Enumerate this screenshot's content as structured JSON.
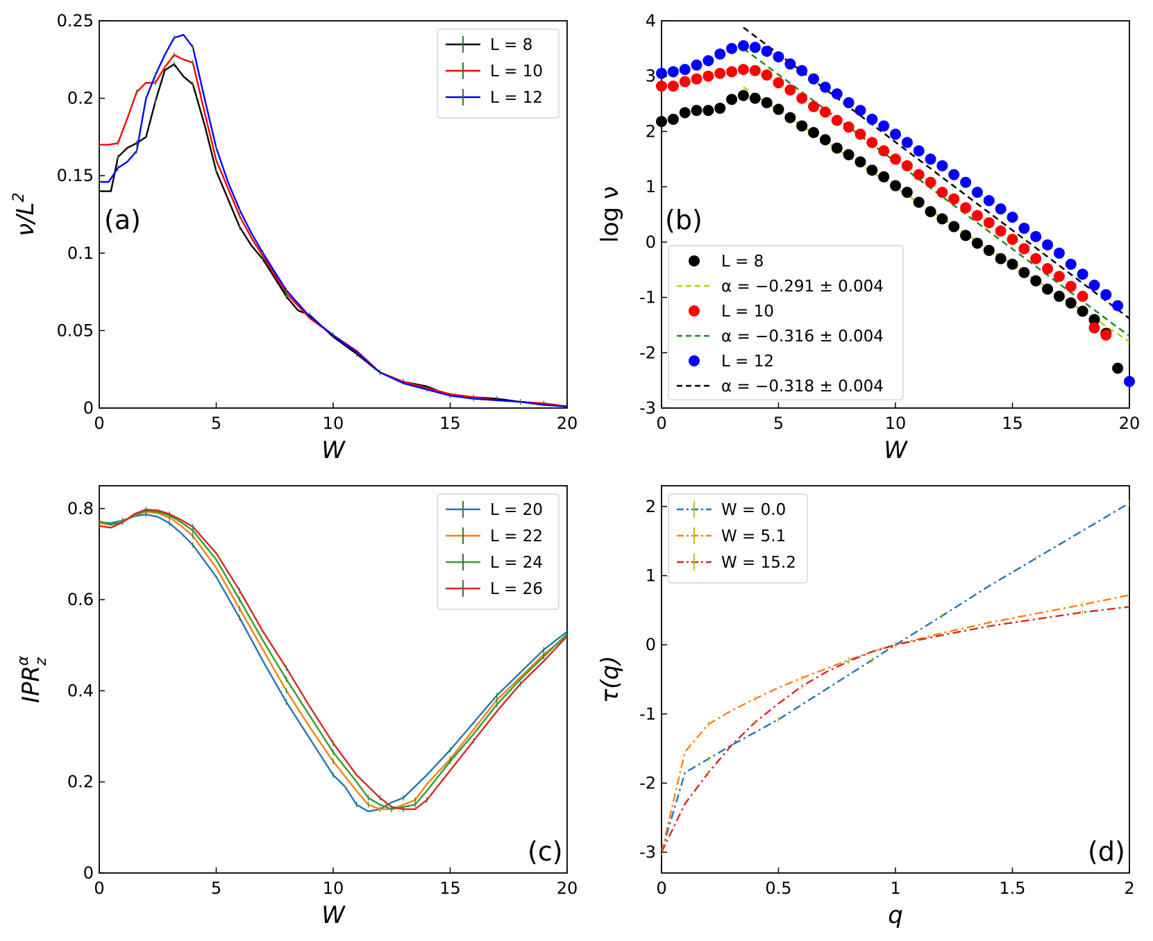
{
  "chart_data": [
    {
      "type": "line",
      "panel_label": "(a)",
      "xlabel": "W",
      "ylabel": "ν/L²",
      "xlim": [
        0,
        20
      ],
      "ylim": [
        0,
        0.25
      ],
      "xticks": [
        "0",
        "5",
        "10",
        "15",
        "20"
      ],
      "yticks": [
        "0",
        "0.05",
        "0.1",
        "0.15",
        "0.2",
        "0.25"
      ],
      "legend_loc": "upper right",
      "series": [
        {
          "name": "L = 8",
          "color": "#000000",
          "x": [
            0,
            0.5,
            0.8,
            1.2,
            1.6,
            2.0,
            2.4,
            2.8,
            3.2,
            3.6,
            4.0,
            4.5,
            5.0,
            5.5,
            6.0,
            6.5,
            7.0,
            7.5,
            8.0,
            8.5,
            9.0,
            10.0,
            11.0,
            12.0,
            13.0,
            14.0,
            15.0,
            16.0,
            17.0,
            18.0,
            19.0,
            20.0
          ],
          "y": [
            0.14,
            0.14,
            0.162,
            0.168,
            0.171,
            0.175,
            0.198,
            0.218,
            0.222,
            0.214,
            0.209,
            0.183,
            0.153,
            0.135,
            0.117,
            0.105,
            0.096,
            0.084,
            0.072,
            0.063,
            0.06,
            0.046,
            0.035,
            0.023,
            0.017,
            0.014,
            0.008,
            0.007,
            0.006,
            0.004,
            0.003,
            0.001
          ]
        },
        {
          "name": "L = 10",
          "color": "#ff0000",
          "x": [
            0,
            0.4,
            0.8,
            1.2,
            1.6,
            2.0,
            2.4,
            2.8,
            3.2,
            3.6,
            4.0,
            4.5,
            5.0,
            5.5,
            6.0,
            6.5,
            7.0,
            7.5,
            8.0,
            9.0,
            10.0,
            11.0,
            12.0,
            13.0,
            14.0,
            15.0,
            16.0,
            17.0,
            18.0,
            19.0,
            20.0
          ],
          "y": [
            0.17,
            0.17,
            0.171,
            0.187,
            0.204,
            0.21,
            0.21,
            0.22,
            0.228,
            0.225,
            0.223,
            0.191,
            0.16,
            0.142,
            0.124,
            0.11,
            0.098,
            0.086,
            0.074,
            0.058,
            0.047,
            0.037,
            0.023,
            0.017,
            0.013,
            0.009,
            0.007,
            0.005,
            0.004,
            0.003,
            0.001
          ]
        },
        {
          "name": "L = 12",
          "color": "#0000ff",
          "x": [
            0,
            0.4,
            0.8,
            1.2,
            1.6,
            2.0,
            2.4,
            2.8,
            3.2,
            3.6,
            4.0,
            4.5,
            5.0,
            5.5,
            6.0,
            6.5,
            7.0,
            7.5,
            8.0,
            9.0,
            10.0,
            11.0,
            12.0,
            13.0,
            14.0,
            15.0,
            16.0,
            17.0,
            18.0,
            19.0,
            20.0
          ],
          "y": [
            0.146,
            0.146,
            0.155,
            0.159,
            0.166,
            0.2,
            0.215,
            0.228,
            0.239,
            0.241,
            0.233,
            0.2,
            0.168,
            0.146,
            0.128,
            0.113,
            0.1,
            0.088,
            0.076,
            0.059,
            0.047,
            0.036,
            0.023,
            0.016,
            0.012,
            0.008,
            0.006,
            0.005,
            0.004,
            0.002,
            0.001
          ]
        }
      ]
    },
    {
      "type": "scatter",
      "panel_label": "(b)",
      "xlabel": "W",
      "ylabel": "log ν",
      "xlim": [
        0,
        20
      ],
      "ylim": [
        -3,
        4
      ],
      "xticks": [
        "0",
        "5",
        "10",
        "15",
        "20"
      ],
      "yticks": [
        "-3",
        "-2",
        "-1",
        "0",
        "1",
        "2",
        "3",
        "4"
      ],
      "legend_loc": "lower left",
      "series": [
        {
          "name": "L = 8",
          "color": "#000000",
          "x": [
            0,
            0.5,
            1.0,
            1.5,
            2.0,
            2.5,
            3.0,
            3.5,
            4.0,
            4.5,
            5.0,
            5.5,
            6.0,
            6.5,
            7.0,
            7.5,
            8.0,
            8.5,
            9.0,
            9.5,
            10.0,
            10.5,
            11.0,
            11.5,
            12.0,
            12.5,
            13.0,
            13.5,
            14.0,
            14.5,
            15.0,
            15.5,
            16.0,
            16.5,
            17.0,
            17.5,
            18.0,
            18.5,
            19.0,
            19.5
          ],
          "y": [
            2.18,
            2.22,
            2.34,
            2.38,
            2.38,
            2.42,
            2.58,
            2.65,
            2.6,
            2.52,
            2.4,
            2.25,
            2.1,
            1.98,
            1.85,
            1.7,
            1.58,
            1.45,
            1.3,
            1.18,
            1.02,
            0.9,
            0.72,
            0.55,
            0.42,
            0.28,
            0.12,
            -0.02,
            -0.15,
            -0.3,
            -0.4,
            -0.55,
            -0.7,
            -0.85,
            -0.98,
            -1.1,
            -1.25,
            -1.4,
            -1.65,
            -2.28
          ]
        },
        {
          "name": "L = 10",
          "color": "#ff0000",
          "x": [
            0,
            0.5,
            1.0,
            1.5,
            2.0,
            2.5,
            3.0,
            3.5,
            4.0,
            4.5,
            5.0,
            5.5,
            6.0,
            6.5,
            7.0,
            7.5,
            8.0,
            8.5,
            9.0,
            9.5,
            10.0,
            10.5,
            11.0,
            11.5,
            12.0,
            12.5,
            13.0,
            13.5,
            14.0,
            14.5,
            15.0,
            15.5,
            16.0,
            16.5,
            17.0,
            17.5,
            18.0,
            18.5,
            19.0
          ],
          "y": [
            2.82,
            2.82,
            2.9,
            2.95,
            3.0,
            3.05,
            3.08,
            3.12,
            3.1,
            3.02,
            2.88,
            2.75,
            2.6,
            2.45,
            2.35,
            2.2,
            2.08,
            1.95,
            1.8,
            1.65,
            1.5,
            1.38,
            1.22,
            1.08,
            0.9,
            0.78,
            0.62,
            0.48,
            0.35,
            0.2,
            0.05,
            -0.12,
            -0.3,
            -0.48,
            -0.62,
            -0.8,
            -0.98,
            -1.55,
            -1.68
          ]
        },
        {
          "name": "L = 12",
          "color": "#0000ff",
          "x": [
            0,
            0.5,
            1.0,
            1.5,
            2.0,
            2.5,
            3.0,
            3.5,
            4.0,
            4.5,
            5.0,
            5.5,
            6.0,
            6.5,
            7.0,
            7.5,
            8.0,
            8.5,
            9.0,
            9.5,
            10.0,
            10.5,
            11.0,
            11.5,
            12.0,
            12.5,
            13.0,
            13.5,
            14.0,
            14.5,
            15.0,
            15.5,
            16.0,
            16.5,
            17.0,
            17.5,
            18.0,
            18.5,
            19.0,
            19.5,
            20.0
          ],
          "y": [
            3.05,
            3.08,
            3.12,
            3.2,
            3.28,
            3.4,
            3.5,
            3.55,
            3.52,
            3.45,
            3.35,
            3.22,
            3.1,
            2.95,
            2.8,
            2.68,
            2.52,
            2.38,
            2.22,
            2.1,
            1.95,
            1.8,
            1.65,
            1.5,
            1.38,
            1.22,
            1.08,
            0.9,
            0.75,
            0.6,
            0.45,
            0.25,
            0.1,
            -0.05,
            -0.2,
            -0.4,
            -0.58,
            -0.78,
            -0.95,
            -1.15,
            -2.52
          ]
        }
      ],
      "fits": [
        {
          "name": "α = −0.291 ± 0.004",
          "color": "#c8c800",
          "x": [
            3.5,
            20
          ],
          "y": [
            2.8,
            -1.8
          ]
        },
        {
          "name": "α = −0.316 ± 0.004",
          "color": "#1a8a1a",
          "x": [
            3.5,
            20
          ],
          "y": [
            3.5,
            -1.7
          ]
        },
        {
          "name": "α = −0.318 ± 0.004",
          "color": "#000000",
          "x": [
            3.5,
            20
          ],
          "y": [
            3.88,
            -1.38
          ]
        }
      ]
    },
    {
      "type": "line",
      "panel_label": "(c)",
      "xlabel": "W",
      "ylabel": "IPR_z^α",
      "xlim": [
        0,
        20
      ],
      "ylim": [
        0,
        0.85
      ],
      "xticks": [
        "0",
        "5",
        "10",
        "15",
        "20"
      ],
      "yticks": [
        "0",
        "0.2",
        "0.4",
        "0.6",
        "0.8"
      ],
      "legend_loc": "upper right",
      "series": [
        {
          "name": "L = 20",
          "color": "#1f77b4",
          "x": [
            0,
            0.5,
            1,
            1.5,
            2,
            2.5,
            3,
            3.5,
            4,
            5,
            6,
            7,
            8,
            9,
            10,
            10.5,
            11,
            11.5,
            12,
            12.5,
            13,
            14,
            15,
            16,
            17,
            18,
            19,
            20
          ],
          "y": [
            0.77,
            0.768,
            0.774,
            0.783,
            0.787,
            0.782,
            0.768,
            0.746,
            0.72,
            0.65,
            0.56,
            0.465,
            0.375,
            0.295,
            0.215,
            0.19,
            0.15,
            0.135,
            0.14,
            0.155,
            0.165,
            0.215,
            0.27,
            0.33,
            0.39,
            0.44,
            0.49,
            0.53
          ]
        },
        {
          "name": "L = 22",
          "color": "#ff7f0e",
          "x": [
            0,
            0.5,
            1,
            1.5,
            2,
            2.5,
            3,
            3.5,
            4,
            5,
            6,
            7,
            8,
            9,
            10,
            11,
            11.5,
            12,
            12.5,
            13,
            13.5,
            14,
            15,
            16,
            17,
            18,
            19,
            20
          ],
          "y": [
            0.768,
            0.764,
            0.772,
            0.785,
            0.793,
            0.79,
            0.78,
            0.762,
            0.74,
            0.67,
            0.58,
            0.49,
            0.4,
            0.32,
            0.245,
            0.18,
            0.15,
            0.14,
            0.14,
            0.15,
            0.16,
            0.195,
            0.25,
            0.315,
            0.38,
            0.43,
            0.48,
            0.52
          ]
        },
        {
          "name": "L = 24",
          "color": "#2ca02c",
          "x": [
            0,
            0.5,
            1,
            1.5,
            2,
            2.5,
            3,
            3.5,
            4,
            5,
            6,
            7,
            8,
            9,
            10,
            11,
            11.5,
            12,
            12.5,
            13,
            13.5,
            14,
            15,
            16,
            17,
            18,
            19,
            20
          ],
          "y": [
            0.772,
            0.765,
            0.77,
            0.786,
            0.795,
            0.793,
            0.785,
            0.77,
            0.752,
            0.688,
            0.6,
            0.51,
            0.425,
            0.345,
            0.265,
            0.2,
            0.165,
            0.15,
            0.14,
            0.145,
            0.15,
            0.18,
            0.245,
            0.305,
            0.37,
            0.425,
            0.475,
            0.525
          ]
        },
        {
          "name": "L = 26",
          "color": "#d62728",
          "x": [
            0,
            0.5,
            1,
            1.5,
            2,
            2.5,
            3,
            3.5,
            4,
            5,
            6,
            7,
            8,
            9,
            10,
            11,
            12,
            12.5,
            13,
            13.5,
            14,
            15,
            16,
            17,
            18,
            19,
            20
          ],
          "y": [
            0.762,
            0.758,
            0.77,
            0.788,
            0.798,
            0.796,
            0.788,
            0.775,
            0.76,
            0.702,
            0.62,
            0.53,
            0.45,
            0.365,
            0.285,
            0.215,
            0.165,
            0.145,
            0.14,
            0.14,
            0.16,
            0.225,
            0.29,
            0.355,
            0.415,
            0.465,
            0.52
          ]
        }
      ]
    },
    {
      "type": "line",
      "panel_label": "(d)",
      "xlabel": "q",
      "ylabel": "τ(q)",
      "xlim": [
        0,
        2
      ],
      "ylim": [
        -3.3,
        2.3
      ],
      "xticks": [
        "0",
        "0.5",
        "1",
        "1.5",
        "2"
      ],
      "yticks": [
        "-3",
        "-2",
        "-1",
        "0",
        "1",
        "2"
      ],
      "legend_loc": "upper left",
      "series": [
        {
          "name": "W = 0.0",
          "color": "#1f77b4",
          "x": [
            0,
            0.1,
            0.2,
            0.3,
            0.5,
            0.7,
            0.9,
            1.0,
            1.2,
            1.4,
            1.6,
            1.8,
            2.0
          ],
          "y": [
            -3.0,
            -1.85,
            -1.65,
            -1.45,
            -1.08,
            -0.65,
            -0.22,
            0.0,
            0.42,
            0.85,
            1.25,
            1.65,
            2.05
          ]
        },
        {
          "name": "W = 5.1",
          "color": "#ff7f0e",
          "x": [
            0,
            0.1,
            0.2,
            0.3,
            0.4,
            0.5,
            0.6,
            0.7,
            0.8,
            0.9,
            1.0,
            1.2,
            1.4,
            1.6,
            1.8,
            2.0
          ],
          "y": [
            -3.0,
            -1.55,
            -1.15,
            -0.95,
            -0.78,
            -0.62,
            -0.48,
            -0.35,
            -0.22,
            -0.1,
            0.0,
            0.17,
            0.32,
            0.45,
            0.58,
            0.72
          ]
        },
        {
          "name": "W = 15.2",
          "color": "#d62728",
          "x": [
            0,
            0.1,
            0.2,
            0.3,
            0.4,
            0.5,
            0.6,
            0.7,
            0.8,
            0.9,
            1.0,
            1.2,
            1.4,
            1.6,
            1.8,
            2.0
          ],
          "y": [
            -3.0,
            -2.3,
            -1.85,
            -1.45,
            -1.12,
            -0.85,
            -0.6,
            -0.4,
            -0.24,
            -0.1,
            0.0,
            0.14,
            0.27,
            0.37,
            0.47,
            0.55
          ]
        }
      ]
    }
  ]
}
